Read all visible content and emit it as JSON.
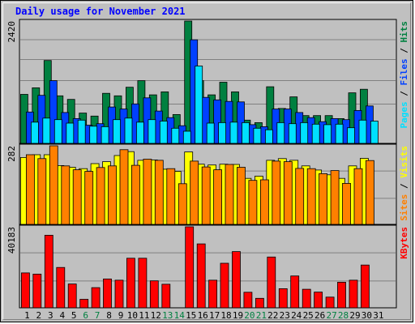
{
  "chart_data": {
    "type": "bar",
    "title": "Daily usage for November 2021",
    "categories": [
      "1",
      "2",
      "3",
      "4",
      "5",
      "6",
      "7",
      "8",
      "9",
      "10",
      "11",
      "12",
      "13",
      "14",
      "15",
      "16",
      "17",
      "18",
      "19",
      "20",
      "21",
      "22",
      "23",
      "24",
      "25",
      "26",
      "27",
      "28",
      "29",
      "30",
      "31"
    ],
    "weekend_days": [
      "6",
      "7",
      "13",
      "14",
      "20",
      "21",
      "27",
      "28"
    ],
    "panels": [
      {
        "id": "hits-files-pages",
        "max_label": "2420",
        "max_value": 2420,
        "ylabel_parts": [
          "Pages",
          "Files",
          "Hits"
        ],
        "ylabel_separator": " / ",
        "series": [
          {
            "name": "Hits",
            "color": "#008040",
            "values": [
              970,
              1100,
              1640,
              940,
              870,
              600,
              540,
              990,
              940,
              1110,
              1240,
              960,
              1020,
              570,
              2420,
              1240,
              960,
              1210,
              1020,
              460,
              410,
              1120,
              690,
              920,
              550,
              550,
              550,
              490,
              1000,
              1070,
              0
            ]
          },
          {
            "name": "Files",
            "color": "#0040ff",
            "values": [
              620,
              950,
              1240,
              610,
              490,
              360,
              390,
              720,
              680,
              780,
              900,
              640,
              510,
              350,
              2050,
              910,
              860,
              830,
              820,
              370,
              330,
              680,
              680,
              610,
              510,
              430,
              490,
              470,
              650,
              740,
              0
            ]
          },
          {
            "name": "Pages",
            "color": "#00e0ff",
            "values": [
              420,
              500,
              470,
              400,
              460,
              340,
              330,
              470,
              500,
              420,
              470,
              440,
              300,
              240,
              1530,
              400,
              410,
              420,
              410,
              300,
              270,
              410,
              390,
              410,
              380,
              370,
              380,
              310,
              460,
              440,
              0
            ]
          }
        ]
      },
      {
        "id": "visits-sites",
        "max_label": "282",
        "max_value": 282,
        "ylabel_parts": [
          "Sites",
          "Visits"
        ],
        "ylabel_separator": " / ",
        "series": [
          {
            "name": "Visits",
            "color": "#ffff00",
            "values": [
              240,
              250,
              250,
              211,
              205,
              200,
              218,
              225,
              247,
              261,
              230,
              231,
              198,
              190,
              260,
              216,
              213,
              216,
              215,
              165,
              173,
              230,
              236,
              230,
              210,
              195,
              178,
              165,
              210,
              237,
              0
            ]
          },
          {
            "name": "Sites",
            "color": "#ff8000",
            "values": [
              250,
              236,
              282,
              210,
              196,
              190,
              204,
              210,
              268,
              212,
              234,
              230,
              200,
              146,
              227,
              206,
              196,
              215,
              205,
              158,
              160,
              227,
              225,
              201,
              200,
              182,
              193,
              147,
              200,
              229,
              0
            ]
          }
        ]
      },
      {
        "id": "kbytes",
        "max_label": "40183",
        "max_value": 40183,
        "ylabel_parts": [
          "KBytes"
        ],
        "ylabel_separator": "",
        "series": [
          {
            "name": "KBytes",
            "color": "#ff0000",
            "values": [
              17300,
              16700,
              36000,
              20000,
              11800,
              4200,
              10000,
              14300,
              13700,
              24600,
              24600,
              13400,
              11700,
              0,
              40183,
              31700,
              13700,
              22100,
              27900,
              7700,
              4700,
              25200,
              9500,
              15800,
              9200,
              7800,
              5300,
              12700,
              13700,
              21200,
              0
            ]
          }
        ]
      }
    ]
  }
}
